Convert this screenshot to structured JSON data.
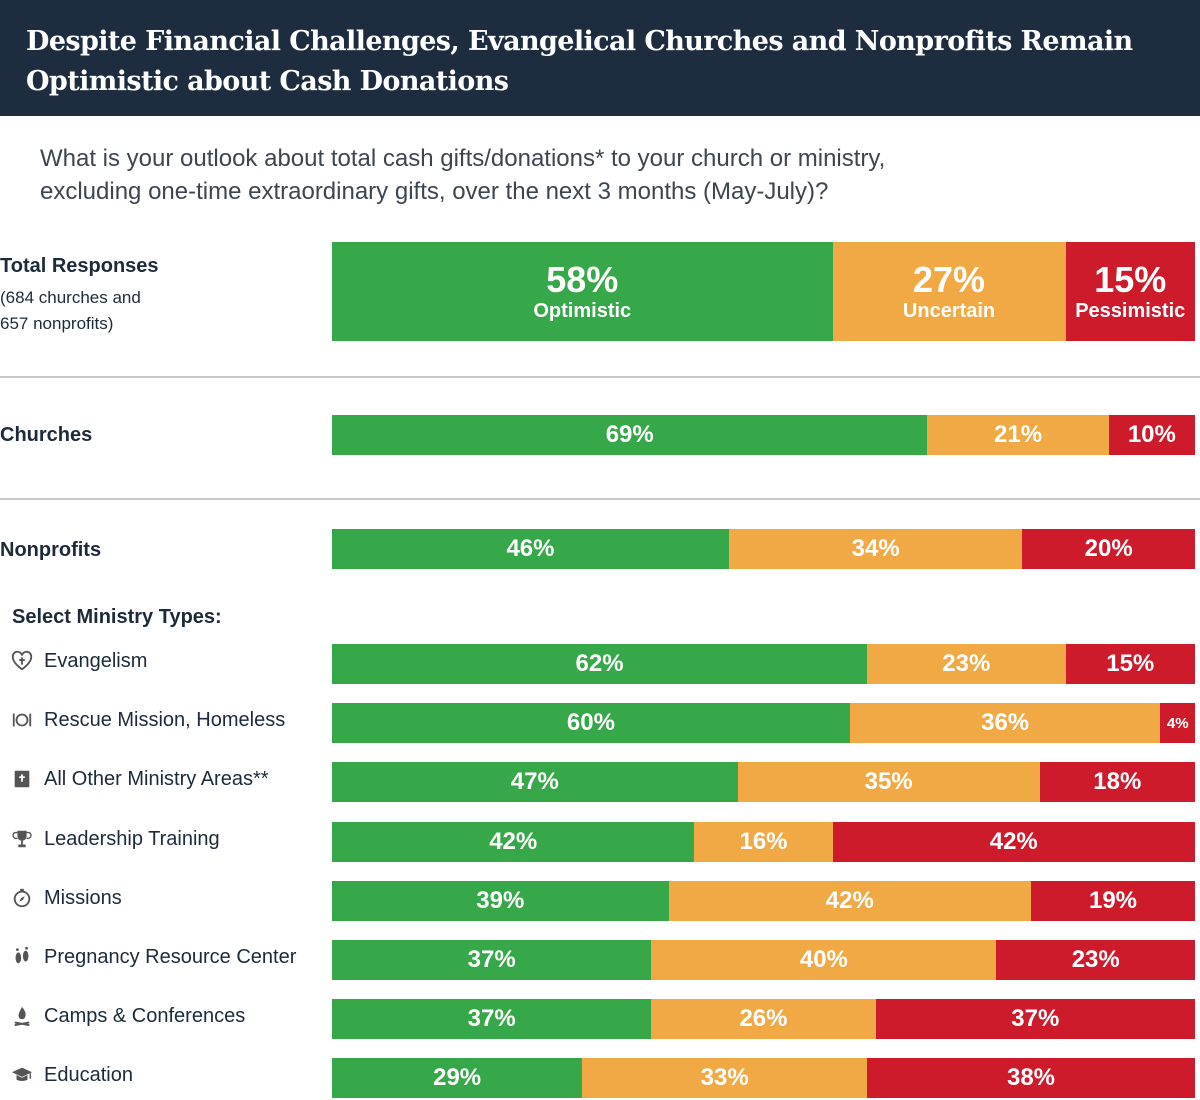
{
  "header": {
    "title_line1": "Despite Financial Challenges, Evangelical Churches and Nonprofits Remain",
    "title_line2": "Optimistic about Cash Donations"
  },
  "question": {
    "line1": "What is your outlook about total cash gifts/donations* to your church or ministry,",
    "line2": "excluding one-time extraordinary gifts, over the next 3 months (May-July)?"
  },
  "colors": {
    "optimistic": "#37a84a",
    "uncertain": "#f0a944",
    "pessimistic": "#cd1b2c"
  },
  "total": {
    "label": "Total Responses",
    "sub_line1": "(684 churches and",
    "sub_line2": "657 nonprofits)",
    "values": [
      "58%",
      "27%",
      "15%"
    ],
    "categories": [
      "Optimistic",
      "Uncertain",
      "Pessimistic"
    ]
  },
  "churches": {
    "label": "Churches",
    "values": [
      "69%",
      "21%",
      "10%"
    ]
  },
  "nonprofits": {
    "label": "Nonprofits",
    "values": [
      "46%",
      "34%",
      "20%"
    ]
  },
  "section_label": "Select Ministry Types:",
  "ministries": [
    {
      "label": "Evangelism",
      "icon": "heart-cross-icon",
      "values": [
        "62%",
        "23%",
        "15%"
      ]
    },
    {
      "label": "Rescue Mission, Homeless",
      "icon": "plate-utensils-icon",
      "values": [
        "60%",
        "36%",
        "4%"
      ]
    },
    {
      "label": "All Other Ministry Areas**",
      "icon": "bible-icon",
      "values": [
        "47%",
        "35%",
        "18%"
      ]
    },
    {
      "label": "Leadership Training",
      "icon": "trophy-icon",
      "values": [
        "42%",
        "16%",
        "42%"
      ]
    },
    {
      "label": "Missions",
      "icon": "compass-icon",
      "values": [
        "39%",
        "42%",
        "19%"
      ]
    },
    {
      "label": "Pregnancy Resource Center",
      "icon": "footprints-icon",
      "values": [
        "37%",
        "40%",
        "23%"
      ]
    },
    {
      "label": "Camps & Conferences",
      "icon": "campfire-icon",
      "values": [
        "37%",
        "26%",
        "37%"
      ]
    },
    {
      "label": "Education",
      "icon": "graduation-cap-icon",
      "values": [
        "29%",
        "33%",
        "38%"
      ]
    }
  ],
  "chart_data": {
    "type": "bar",
    "orientation": "horizontal",
    "stacked": true,
    "percent_stacked": true,
    "categories": [
      "Total Responses",
      "Churches",
      "Nonprofits",
      "Evangelism",
      "Rescue Mission, Homeless",
      "All Other Ministry Areas**",
      "Leadership Training",
      "Missions",
      "Pregnancy Resource Center",
      "Camps & Conferences",
      "Education"
    ],
    "series": [
      {
        "name": "Optimistic",
        "color": "#37a84a",
        "values": [
          58,
          69,
          46,
          62,
          60,
          47,
          42,
          39,
          37,
          37,
          29
        ]
      },
      {
        "name": "Uncertain",
        "color": "#f0a944",
        "values": [
          27,
          21,
          34,
          23,
          36,
          35,
          16,
          42,
          40,
          26,
          33
        ]
      },
      {
        "name": "Pessimistic",
        "color": "#cd1b2c",
        "values": [
          15,
          10,
          20,
          15,
          4,
          18,
          42,
          19,
          23,
          37,
          38
        ]
      }
    ],
    "xlim": [
      0,
      100
    ]
  }
}
